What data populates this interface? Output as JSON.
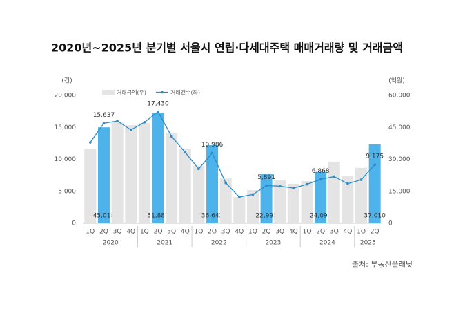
{
  "chart_data": {
    "type": "bar-line",
    "title": "2020년~2025년 분기별 서울시 연립·다세대주택 매매거래량 및 거래금액",
    "source": "출처: 부동산플래닛",
    "y_unit": "(건)",
    "y2_unit": "(억원)",
    "categories": [
      "1Q",
      "2Q",
      "3Q",
      "4Q",
      "1Q",
      "2Q",
      "3Q",
      "4Q",
      "1Q",
      "2Q",
      "3Q",
      "4Q",
      "1Q",
      "2Q",
      "3Q",
      "4Q",
      "1Q",
      "2Q",
      "3Q",
      "4Q",
      "1Q",
      "2Q"
    ],
    "years": [
      "2020",
      "2021",
      "2022",
      "2023",
      "2024",
      "2025"
    ],
    "ylim": [
      0,
      20000
    ],
    "yticks": [
      0,
      {
        "value": 5000,
        "label": "5,000"
      },
      {
        "value": 10000,
        "label": "10,000"
      },
      {
        "value": 15000,
        "label": "15,000"
      },
      {
        "value": 20000,
        "label": "20,000"
      }
    ],
    "y2lim": [
      0,
      60000
    ],
    "y2ticks": [
      0,
      {
        "value": 15000,
        "label": "15,000"
      },
      {
        "value": 30000,
        "label": "30,000"
      },
      {
        "value": 45000,
        "label": "45,000"
      },
      {
        "value": 60000,
        "label": "60,000"
      }
    ],
    "series": [
      {
        "name": "거래금액(우)",
        "type": "bar",
        "axis": "y2",
        "color": "#e4e4e4",
        "colors": [
          "#e4e4e4",
          "#4db3ea",
          "#e4e4e4",
          "#e4e4e4",
          "#e4e4e4",
          "#4db3ea",
          "#e4e4e4",
          "#e4e4e4",
          "#e4e4e4",
          "#4db3ea",
          "#e4e4e4",
          "#e4e4e4",
          "#e4e4e4",
          "#4db3ea",
          "#e4e4e4",
          "#e4e4e4",
          "#e4e4e4",
          "#4db3ea",
          "#e4e4e4",
          "#e4e4e4",
          "#e4e4e4",
          "#4db3ea"
        ],
        "values": [
          35000,
          45018,
          47700,
          46000,
          47000,
          51887,
          42500,
          34700,
          27000,
          36642,
          21000,
          12300,
          15500,
          22995,
          20400,
          18500,
          19800,
          24095,
          28900,
          22000,
          26000,
          37010
        ],
        "value_labels": [
          null,
          "45,018",
          null,
          null,
          null,
          "51,887",
          null,
          null,
          null,
          "36,642",
          null,
          null,
          null,
          "22,995",
          null,
          null,
          null,
          "24,095",
          null,
          null,
          null,
          "37,010"
        ]
      },
      {
        "name": "거래건수(좌)",
        "type": "line",
        "axis": "y",
        "color": "#2a8bc7",
        "values": [
          12650,
          15637,
          16000,
          14600,
          15800,
          17430,
          13600,
          11100,
          8500,
          10986,
          6300,
          4100,
          4500,
          5891,
          5800,
          5500,
          6100,
          6868,
          7300,
          6200,
          6800,
          9175
        ],
        "value_labels": [
          null,
          "15,637",
          null,
          null,
          null,
          "17,430",
          null,
          null,
          null,
          "10,986",
          null,
          null,
          null,
          "5,891",
          null,
          null,
          null,
          "6,868",
          null,
          null,
          null,
          "9,175"
        ]
      }
    ]
  }
}
